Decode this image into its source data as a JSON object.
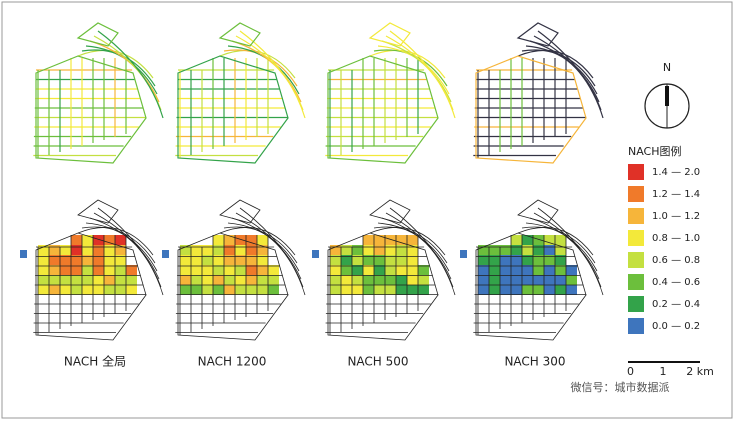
{
  "panels": [
    {
      "label": "NACH 全局"
    },
    {
      "label": "NACH 1200"
    },
    {
      "label": "NACH 500"
    },
    {
      "label": "NACH 300"
    }
  ],
  "legend": {
    "title": "NACH图例",
    "items": [
      {
        "label": "1.4 — 2.0",
        "color": "#e03127"
      },
      {
        "label": "1.2 — 1.4",
        "color": "#f07a2a"
      },
      {
        "label": "1.0 — 1.2",
        "color": "#f6b53a"
      },
      {
        "label": "0.8 — 1.0",
        "color": "#f3e93a"
      },
      {
        "label": "0.6 — 0.8",
        "color": "#c4e040"
      },
      {
        "label": "0.4 — 0.6",
        "color": "#6cbf3c"
      },
      {
        "label": "0.2 — 0.4",
        "color": "#33a34a"
      },
      {
        "label": "0.0 — 0.2",
        "color": "#3e75bd"
      }
    ]
  },
  "north": "N",
  "scale": {
    "labels": [
      "0",
      "1",
      "2 km"
    ]
  },
  "watermark": "微信号：城市数据派"
}
